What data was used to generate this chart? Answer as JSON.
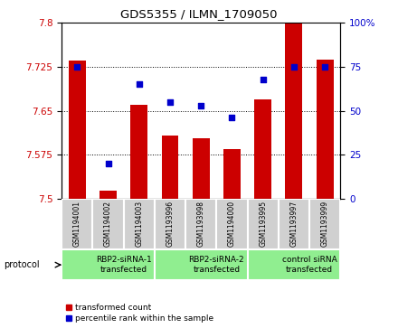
{
  "title": "GDS5355 / ILMN_1709050",
  "samples": [
    "GSM1194001",
    "GSM1194002",
    "GSM1194003",
    "GSM1193996",
    "GSM1193998",
    "GSM1194000",
    "GSM1193995",
    "GSM1193997",
    "GSM1193999"
  ],
  "bar_values": [
    7.735,
    7.513,
    7.66,
    7.608,
    7.603,
    7.585,
    7.67,
    7.8,
    7.737
  ],
  "dot_values": [
    75,
    20,
    65,
    55,
    53,
    46,
    68,
    75,
    75
  ],
  "bar_color": "#cc0000",
  "dot_color": "#0000cc",
  "ymin": 7.5,
  "ymax": 7.8,
  "yticks": [
    7.5,
    7.575,
    7.65,
    7.725,
    7.8
  ],
  "y2ticks": [
    0,
    25,
    50,
    75,
    100
  ],
  "groups": [
    {
      "label": "RBP2-siRNA-1\ntransfected",
      "start": 0,
      "end": 3,
      "color": "#90ee90"
    },
    {
      "label": "RBP2-siRNA-2\ntransfected",
      "start": 3,
      "end": 6,
      "color": "#90ee90"
    },
    {
      "label": "control siRNA\ntransfected",
      "start": 6,
      "end": 9,
      "color": "#90ee90"
    }
  ],
  "protocol_label": "protocol",
  "legend_bar_label": "transformed count",
  "legend_dot_label": "percentile rank within the sample",
  "sample_bg": "#d0d0d0",
  "grid_color": "#000000"
}
